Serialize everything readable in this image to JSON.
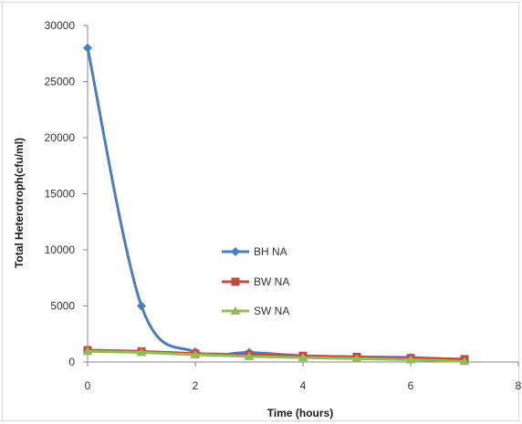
{
  "chart_data": {
    "type": "line",
    "title": "",
    "xlabel": "Time (hours)",
    "ylabel": "Total Heterotroph(cfu/ml)",
    "xlim": [
      0,
      8
    ],
    "ylim": [
      0,
      30000
    ],
    "xticks": [
      0,
      2,
      4,
      6,
      8
    ],
    "yticks": [
      0,
      5000,
      10000,
      15000,
      20000,
      25000,
      30000
    ],
    "grid": false,
    "legend_position": "center",
    "series": [
      {
        "name": "BH NA",
        "color": "#4a7ebb",
        "marker": "diamond",
        "x": [
          0,
          1,
          2,
          3,
          4,
          5,
          6,
          7
        ],
        "values": [
          28000,
          5000,
          900,
          850,
          550,
          450,
          400,
          200
        ]
      },
      {
        "name": "BW NA",
        "color": "#be4b48",
        "marker": "square",
        "x": [
          0,
          1,
          2,
          3,
          4,
          5,
          6,
          7
        ],
        "values": [
          1050,
          950,
          750,
          650,
          550,
          450,
          350,
          250
        ]
      },
      {
        "name": "SW NA",
        "color": "#98b954",
        "marker": "triangle",
        "x": [
          0,
          1,
          2,
          3,
          4,
          5,
          6,
          7
        ],
        "values": [
          950,
          850,
          650,
          500,
          400,
          300,
          200,
          50
        ]
      }
    ]
  }
}
